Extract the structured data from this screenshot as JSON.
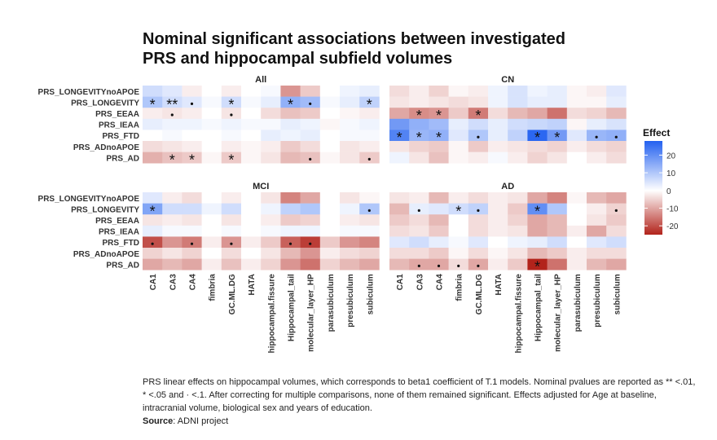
{
  "title_line1": "Nominal significant associations between investigated",
  "title_line2": "PRS and hippocampal subfield volumes",
  "caption_line1": "PRS linear effects on hippocampal volumes, which corresponds to beta1 coefficient of T.1 models. Nominal pvalues are reported as ** <.01,",
  "caption_line2": "* <.05 and · <.1. After correcting for multiple comparisons, none of them remained significant. Effects adjusted for Age at baseline,",
  "caption_line3": "intracranial volume, biological sex and years of education.",
  "source_label": "Source",
  "source_text": ": ADNI project",
  "chart_data": {
    "type": "heatmap",
    "rows": [
      "PRS_LONGEVITYnoAPOE",
      "PRS_LONGEVITY",
      "PRS_EEAA",
      "PRS_IEAA",
      "PRS_FTD",
      "PRS_ADnoAPOE",
      "PRS_AD"
    ],
    "columns": [
      "CA1",
      "CA3",
      "CA4",
      "fimbria",
      "GC.ML.DG",
      "HATA",
      "hippocampal.fissure",
      "Hippocampal_tail",
      "molecular_layer_HP",
      "parasubiculum",
      "presubiculum",
      "subiculum"
    ],
    "legend": {
      "title": "Effect",
      "ticks": [
        20,
        10,
        0,
        -10,
        -20
      ],
      "range": [
        -25,
        28
      ],
      "high_color": "#2361f0",
      "mid_color": "#ffffff",
      "low_color": "#b2231b"
    },
    "panels": [
      {
        "name": "All",
        "values": [
          [
            6,
            4,
            -2,
            0,
            -2,
            0,
            1,
            -12,
            -6,
            0,
            2,
            3
          ],
          [
            10,
            6,
            4,
            1,
            6,
            1,
            3,
            14,
            12,
            1,
            3,
            8
          ],
          [
            -2,
            -3,
            -2,
            0,
            -3,
            0,
            -4,
            -7,
            -6,
            0,
            -1,
            -2
          ],
          [
            3,
            2,
            2,
            1,
            2,
            1,
            1,
            3,
            2,
            -1,
            1,
            2
          ],
          [
            0,
            1,
            0,
            0,
            1,
            0,
            3,
            2,
            3,
            0,
            1,
            1
          ],
          [
            -4,
            -3,
            -2,
            0,
            -2,
            -1,
            -2,
            -6,
            -4,
            0,
            -3,
            -2
          ],
          [
            -9,
            -7,
            -6,
            -1,
            -6,
            -1,
            -3,
            -8,
            -7,
            -1,
            -3,
            -6
          ]
        ],
        "signif": [
          [
            "",
            "",
            "",
            "",
            "",
            "",
            "",
            "",
            "",
            "",
            "",
            ""
          ],
          [
            "*",
            "**",
            "·",
            "",
            "*",
            "",
            "",
            "*",
            "·",
            "",
            "",
            "*"
          ],
          [
            "",
            "·",
            "",
            "",
            "·",
            "",
            "",
            "",
            "",
            "",
            "",
            ""
          ],
          [
            "",
            "",
            "",
            "",
            "",
            "",
            "",
            "",
            "",
            "",
            "",
            ""
          ],
          [
            "",
            "",
            "",
            "",
            "",
            "",
            "",
            "",
            "",
            "",
            "",
            ""
          ],
          [
            "",
            "",
            "",
            "",
            "",
            "",
            "",
            "",
            "",
            "",
            "",
            ""
          ],
          [
            "",
            "*",
            "*",
            "",
            "*",
            "",
            "",
            "",
            "·",
            "",
            "",
            "·"
          ]
        ]
      },
      {
        "name": "CN",
        "values": [
          [
            -4,
            -2,
            -5,
            -1,
            -2,
            2,
            5,
            2,
            3,
            -1,
            -2,
            4
          ],
          [
            -3,
            -2,
            -3,
            -4,
            -3,
            2,
            5,
            3,
            3,
            -1,
            -1,
            3
          ],
          [
            -10,
            -13,
            -12,
            -6,
            -15,
            -4,
            -8,
            -10,
            -16,
            -4,
            -5,
            -8
          ],
          [
            18,
            14,
            12,
            3,
            6,
            3,
            6,
            7,
            8,
            -1,
            3,
            5
          ],
          [
            22,
            13,
            14,
            4,
            10,
            3,
            8,
            27,
            18,
            4,
            13,
            14
          ],
          [
            -3,
            -5,
            -6,
            -1,
            -6,
            -2,
            -3,
            -4,
            -5,
            -2,
            -4,
            -5
          ],
          [
            2,
            -3,
            -7,
            -1,
            -2,
            1,
            -2,
            -5,
            -3,
            0,
            -2,
            -4
          ]
        ],
        "signif": [
          [
            "",
            "",
            "",
            "",
            "",
            "",
            "",
            "",
            "",
            "",
            "",
            ""
          ],
          [
            "",
            "",
            "",
            "",
            "",
            "",
            "",
            "",
            "",
            "",
            "",
            ""
          ],
          [
            "",
            "*",
            "*",
            "",
            "*",
            "",
            "",
            "",
            "",
            "",
            "",
            ""
          ],
          [
            "",
            "",
            "",
            "",
            "",
            "",
            "",
            "",
            "",
            "",
            "",
            ""
          ],
          [
            "*",
            "*",
            "*",
            "",
            "·",
            "",
            "",
            "*",
            "*",
            "",
            "·",
            "·"
          ],
          [
            "",
            "",
            "",
            "",
            "",
            "",
            "",
            "",
            "",
            "",
            "",
            ""
          ],
          [
            "",
            "",
            "",
            "",
            "",
            "",
            "",
            "",
            "",
            "",
            "",
            ""
          ]
        ]
      },
      {
        "name": "MCI",
        "values": [
          [
            4,
            -2,
            -4,
            0,
            -2,
            0,
            -3,
            -14,
            -10,
            0,
            -3,
            -1
          ],
          [
            16,
            6,
            6,
            2,
            6,
            0,
            2,
            8,
            10,
            0,
            2,
            10
          ],
          [
            -3,
            -2,
            -3,
            0,
            -3,
            0,
            -2,
            -6,
            -5,
            0,
            -2,
            -3
          ],
          [
            3,
            1,
            1,
            0,
            1,
            0,
            1,
            2,
            2,
            0,
            1,
            1
          ],
          [
            -20,
            -12,
            -15,
            -2,
            -12,
            -2,
            -6,
            -18,
            -22,
            -6,
            -12,
            -14
          ],
          [
            -5,
            -3,
            -5,
            0,
            -4,
            0,
            -3,
            -8,
            -12,
            -2,
            -4,
            -5
          ],
          [
            -10,
            -8,
            -10,
            -2,
            -7,
            -2,
            -5,
            -12,
            -16,
            -5,
            -8,
            -10
          ]
        ],
        "signif": [
          [
            "",
            "",
            "",
            "",
            "",
            "",
            "",
            "",
            "",
            "",
            "",
            ""
          ],
          [
            "*",
            "",
            "",
            "",
            "",
            "",
            "",
            "",
            "",
            "",
            "",
            "·"
          ],
          [
            "",
            "",
            "",
            "",
            "",
            "",
            "",
            "",
            "",
            "",
            "",
            ""
          ],
          [
            "",
            "",
            "",
            "",
            "",
            "",
            "",
            "",
            "",
            "",
            "",
            ""
          ],
          [
            "·",
            "",
            "·",
            "",
            "·",
            "",
            "",
            "·",
            "·",
            "",
            "",
            ""
          ],
          [
            "",
            "",
            "",
            "",
            "",
            "",
            "",
            "",
            "",
            "",
            "",
            ""
          ],
          [
            "",
            "",
            "",
            "",
            "",
            "",
            "",
            "",
            "",
            "",
            "",
            ""
          ]
        ]
      },
      {
        "name": "AD",
        "values": [
          [
            -3,
            -2,
            -8,
            -2,
            -4,
            -2,
            -3,
            -10,
            -14,
            -1,
            -8,
            -10
          ],
          [
            -8,
            3,
            4,
            6,
            8,
            -2,
            -6,
            20,
            10,
            0,
            -2,
            -5
          ],
          [
            -6,
            -4,
            -8,
            0,
            -4,
            -2,
            -5,
            -10,
            -8,
            0,
            -3,
            -6
          ],
          [
            -4,
            -3,
            -6,
            0,
            -4,
            -2,
            -3,
            -10,
            -8,
            -2,
            -10,
            -4
          ],
          [
            4,
            6,
            3,
            1,
            4,
            0,
            2,
            3,
            6,
            0,
            4,
            6
          ],
          [
            -4,
            -4,
            -6,
            -1,
            -4,
            -1,
            -3,
            -8,
            -6,
            -2,
            -4,
            -4
          ],
          [
            -8,
            -10,
            -10,
            -4,
            -10,
            -2,
            -6,
            -26,
            -16,
            -2,
            -8,
            -10
          ]
        ],
        "signif": [
          [
            "",
            "",
            "",
            "",
            "",
            "",
            "",
            "",
            "",
            "",
            "",
            ""
          ],
          [
            "",
            "·",
            "",
            "*",
            "·",
            "",
            "",
            "*",
            "",
            "",
            "",
            "·"
          ],
          [
            "",
            "",
            "",
            "",
            "",
            "",
            "",
            "",
            "",
            "",
            "",
            ""
          ],
          [
            "",
            "",
            "",
            "",
            "",
            "",
            "",
            "",
            "",
            "",
            "",
            ""
          ],
          [
            "",
            "",
            "",
            "",
            "",
            "",
            "",
            "",
            "",
            "",
            "",
            ""
          ],
          [
            "",
            "",
            "",
            "",
            "",
            "",
            "",
            "",
            "",
            "",
            "",
            ""
          ],
          [
            "",
            "·",
            "·",
            "·",
            "·",
            "",
            "",
            "*",
            "",
            "",
            "",
            ""
          ]
        ]
      }
    ]
  }
}
